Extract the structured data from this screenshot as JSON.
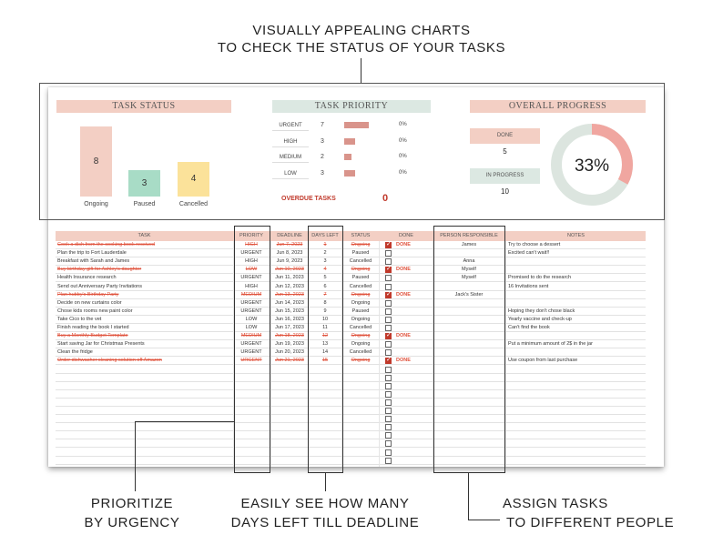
{
  "headline": [
    "VISUALLY APPEALING CHARTS",
    "TO CHECK THE STATUS OF YOUR TASKS"
  ],
  "callouts": {
    "urgency": [
      "PRIORITIZE",
      "BY URGENCY"
    ],
    "deadline": [
      "EASILY SEE HOW MANY",
      "DAYS LEFT TILL DEADLINE"
    ],
    "assign": [
      "ASSIGN TASKS",
      "TO DIFFERENT PEOPLE"
    ]
  },
  "task_status": {
    "title": "TASK STATUS",
    "bars": [
      {
        "label": "Ongoing",
        "value": 8,
        "color": "#f3cfc4"
      },
      {
        "label": "Paused",
        "value": 3,
        "color": "#a8dcc6"
      },
      {
        "label": "Cancelled",
        "value": 4,
        "color": "#fbe29a"
      }
    ]
  },
  "task_priority": {
    "title": "TASK PRIORITY",
    "rows": [
      {
        "label": "URGENT",
        "count": "7",
        "pct": "0%",
        "fraction": 0.47
      },
      {
        "label": "HIGH",
        "count": "3",
        "pct": "0%",
        "fraction": 0.2
      },
      {
        "label": "MEDIUM",
        "count": "2",
        "pct": "0%",
        "fraction": 0.13
      },
      {
        "label": "LOW",
        "count": "3",
        "pct": "0%",
        "fraction": 0.2
      }
    ],
    "overdue_label": "OVERDUE TASKS",
    "overdue_value": "0"
  },
  "overall_progress": {
    "title": "OVERALL PROGRESS",
    "done_label": "DONE",
    "done_value": "5",
    "in_progress_label": "IN PROGRESS",
    "in_progress_value": "10",
    "percent_text": "33%",
    "percent": 0.33,
    "colors": {
      "done": "#f0a6a0",
      "remaining": "#dce5df"
    }
  },
  "table": {
    "headers": {
      "task": "TASK",
      "priority": "PRIORITY",
      "deadline": "DEADLINE",
      "days_left": "DAYS LEFT",
      "status": "STATUS",
      "done": "DONE",
      "person": "PERSON RESPONSIBLE",
      "notes": "NOTES"
    },
    "rows": [
      {
        "task": "Cook a dish from the cooking book received",
        "priority": "HIGH",
        "deadline": "Jun 7, 2023",
        "days": "1",
        "status": "Ongoing",
        "done": true,
        "done_label": "DONE",
        "person": "James",
        "notes": "Try to choose a dessert"
      },
      {
        "task": "Plan the trip to Fort Lauderdale",
        "priority": "URGENT",
        "deadline": "Jun 8, 2023",
        "days": "2",
        "status": "Paused",
        "done": false,
        "done_label": "",
        "person": "",
        "notes": "Excited can't wait!!"
      },
      {
        "task": "Breakfast with Sarah and James",
        "priority": "HIGH",
        "deadline": "Jun 9, 2023",
        "days": "3",
        "status": "Cancelled",
        "done": false,
        "done_label": "",
        "person": "Anna",
        "notes": ""
      },
      {
        "task": "Buy birthday gift for Ashley's daughter",
        "priority": "LOW",
        "deadline": "Jun 10, 2023",
        "days": "4",
        "status": "Ongoing",
        "done": true,
        "done_label": "DONE",
        "person": "Myself",
        "notes": ""
      },
      {
        "task": "Health Insurance research",
        "priority": "URGENT",
        "deadline": "Jun 11, 2023",
        "days": "5",
        "status": "Paused",
        "done": false,
        "done_label": "",
        "person": "Myself",
        "notes": "Promised to do the research"
      },
      {
        "task": "Send out Anniversary Party Invitations",
        "priority": "HIGH",
        "deadline": "Jun 12, 2023",
        "days": "6",
        "status": "Cancelled",
        "done": false,
        "done_label": "",
        "person": "",
        "notes": "16 Invitations sent"
      },
      {
        "task": "Plan hubby's Birthday Party",
        "priority": "MEDIUM",
        "deadline": "Jun 13, 2023",
        "days": "7",
        "status": "Ongoing",
        "done": true,
        "done_label": "DONE",
        "person": "Jack's Sister",
        "notes": ""
      },
      {
        "task": "Decide on new curtains color",
        "priority": "URGENT",
        "deadline": "Jun 14, 2023",
        "days": "8",
        "status": "Ongoing",
        "done": false,
        "done_label": "",
        "person": "",
        "notes": ""
      },
      {
        "task": "Chose kids rooms new paint color",
        "priority": "URGENT",
        "deadline": "Jun 15, 2023",
        "days": "9",
        "status": "Paused",
        "done": false,
        "done_label": "",
        "person": "",
        "notes": "Hoping they don't chose black"
      },
      {
        "task": "Take Cico to the vet",
        "priority": "LOW",
        "deadline": "Jun 16, 2023",
        "days": "10",
        "status": "Ongoing",
        "done": false,
        "done_label": "",
        "person": "",
        "notes": "Yearly vaccine and check-up"
      },
      {
        "task": "Finish reading the book I started",
        "priority": "LOW",
        "deadline": "Jun 17, 2023",
        "days": "11",
        "status": "Cancelled",
        "done": false,
        "done_label": "",
        "person": "",
        "notes": "Can't find the book"
      },
      {
        "task": "Buy a Monthly Budget Template",
        "priority": "MEDIUM",
        "deadline": "Jun 18, 2023",
        "days": "12",
        "status": "Ongoing",
        "done": true,
        "done_label": "DONE",
        "person": "",
        "notes": ""
      },
      {
        "task": "Start saving Jar for Christmas Presents",
        "priority": "URGENT",
        "deadline": "Jun 19, 2023",
        "days": "13",
        "status": "Ongoing",
        "done": false,
        "done_label": "",
        "person": "",
        "notes": "Put a minimum amount of 2$ in the jar"
      },
      {
        "task": "Clean the fridge",
        "priority": "URGENT",
        "deadline": "Jun 20, 2023",
        "days": "14",
        "status": "Cancelled",
        "done": false,
        "done_label": "",
        "person": "",
        "notes": ""
      },
      {
        "task": "Order dishwasher cleaning solution off Amazon",
        "priority": "URGENT",
        "deadline": "Jun 21, 2023",
        "days": "15",
        "status": "Ongoing",
        "done": true,
        "done_label": "DONE",
        "person": "",
        "notes": "Use coupon from last purchase"
      }
    ],
    "empty_rows": 12
  }
}
